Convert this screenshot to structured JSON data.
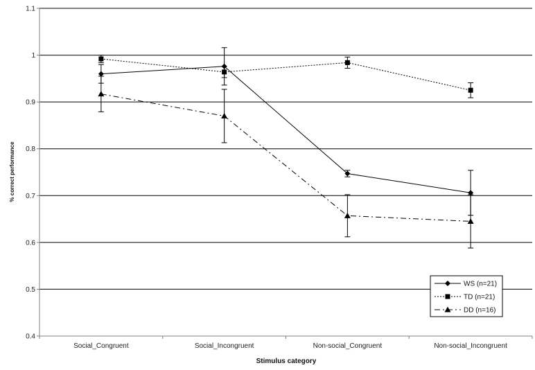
{
  "chart_data": {
    "type": "line",
    "title": "",
    "xlabel": "Stimulus category",
    "ylabel": "% correct performance",
    "categories": [
      "Social_Congruent",
      "Social_Incongruent",
      "Non-social_Congruent",
      "Non-social_Incongruent"
    ],
    "ylim": [
      0.4,
      1.1
    ],
    "yticks": [
      "0.4",
      "0.5",
      "0.6",
      "0.7",
      "0.8",
      "0.9",
      "1",
      "1.1"
    ],
    "grid": "horizontal",
    "legend_position": "bottom-right",
    "series": [
      {
        "name": "WS (n=21)",
        "marker": "diamond",
        "line": "solid",
        "values": [
          0.96,
          0.976,
          0.747,
          0.706
        ],
        "errors": [
          0.02,
          0.04,
          0.007,
          0.048
        ]
      },
      {
        "name": "TD (n=21)",
        "marker": "square",
        "line": "dotted",
        "values": [
          0.992,
          0.964,
          0.984,
          0.925
        ],
        "errors": [
          0.008,
          0.012,
          0.012,
          0.016
        ]
      },
      {
        "name": "DD (n=16)",
        "marker": "triangle",
        "line": "dashdot",
        "values": [
          0.917,
          0.87,
          0.657,
          0.645
        ],
        "errors": [
          0.038,
          0.057,
          0.045,
          0.057
        ]
      }
    ]
  }
}
